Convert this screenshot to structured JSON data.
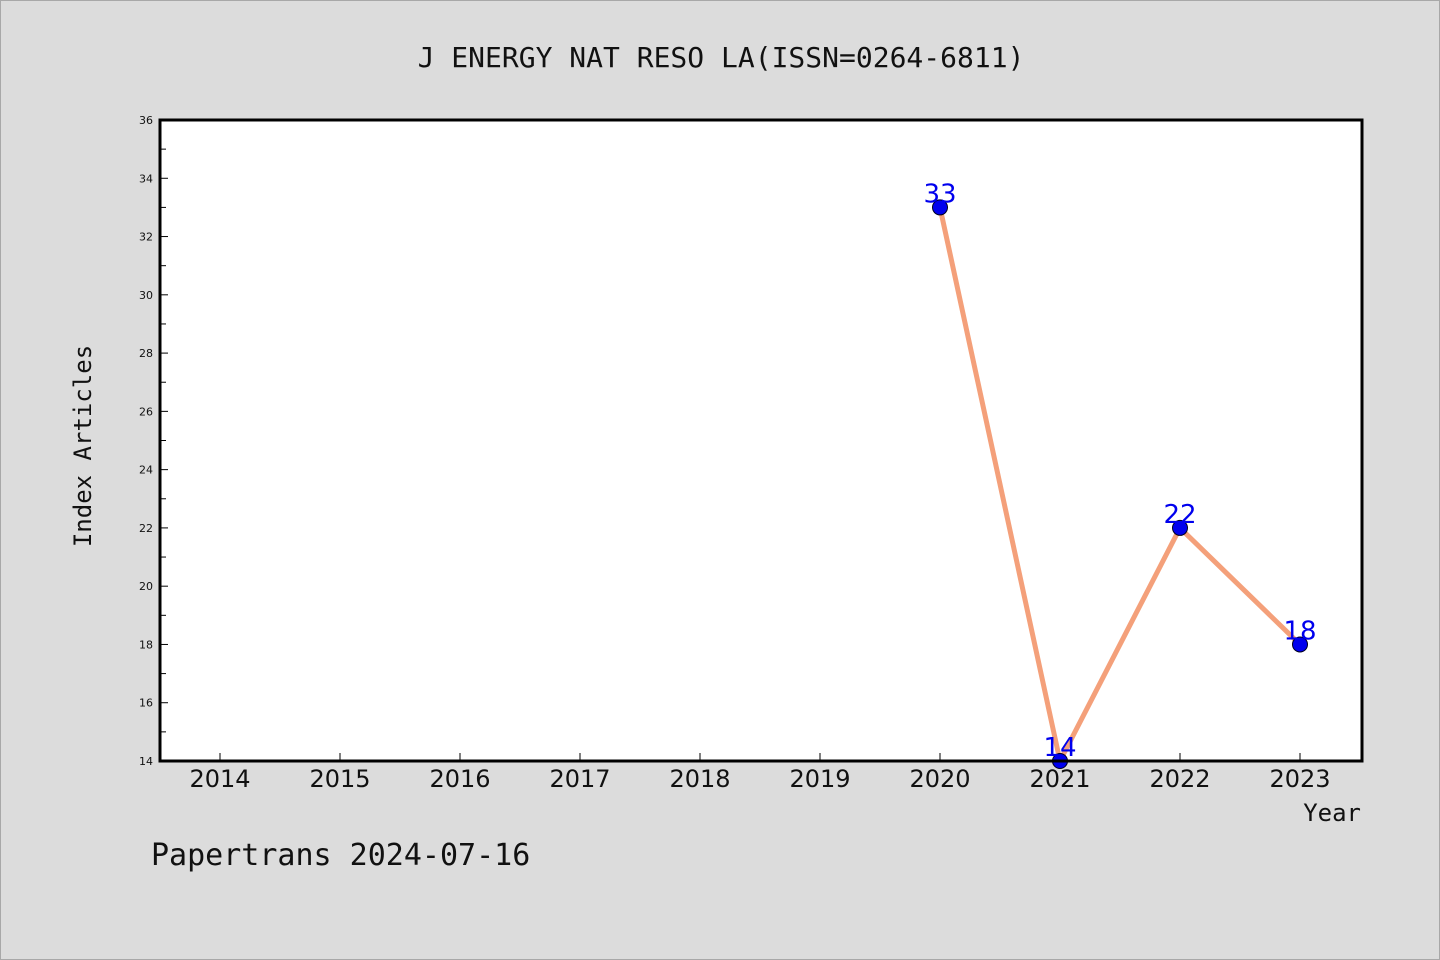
{
  "chart_data": {
    "type": "line",
    "title": "J ENERGY NAT RESO LA(ISSN=0264-6811)",
    "xlabel": "Year",
    "ylabel": "Index Articles",
    "categories": [
      "2014",
      "2015",
      "2016",
      "2017",
      "2018",
      "2019",
      "2020",
      "2021",
      "2022",
      "2023"
    ],
    "series": [
      {
        "x": [
          "2020",
          "2021",
          "2022",
          "2023"
        ],
        "values": [
          33,
          14,
          22,
          18
        ]
      }
    ],
    "ylim": [
      14,
      36
    ],
    "yticks": [
      14,
      16,
      18,
      20,
      22,
      24,
      26,
      28,
      30,
      32,
      34,
      36
    ],
    "grid": false,
    "line_color": "#f4a07a",
    "marker_color": "#0000ee",
    "label_color": "#0000ee"
  },
  "footer": {
    "text": "Papertrans 2024-07-16"
  }
}
